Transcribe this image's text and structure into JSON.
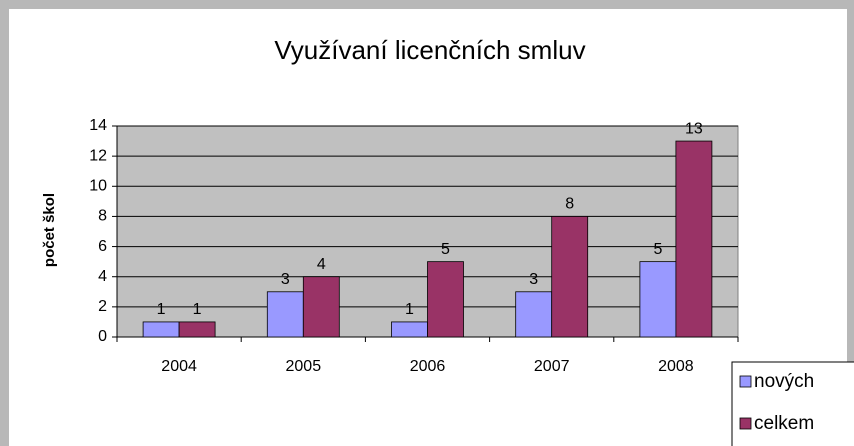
{
  "chart_data": {
    "type": "bar",
    "title": "Využívaní licenčních smluv",
    "ylabel": "počet škol",
    "categories": [
      "2004",
      "2005",
      "2006",
      "2007",
      "2008"
    ],
    "series": [
      {
        "name": "nových",
        "color": "#9999ff",
        "values": [
          1,
          3,
          1,
          3,
          5
        ]
      },
      {
        "name": "celkem",
        "color": "#993366",
        "values": [
          1,
          4,
          5,
          8,
          13
        ]
      }
    ],
    "ylim": [
      0,
      14
    ],
    "yticks": [
      0,
      2,
      4,
      6,
      8,
      10,
      12,
      14
    ],
    "grid": true,
    "legend": "bottom-right",
    "plot_background": "#c0c0c0"
  }
}
